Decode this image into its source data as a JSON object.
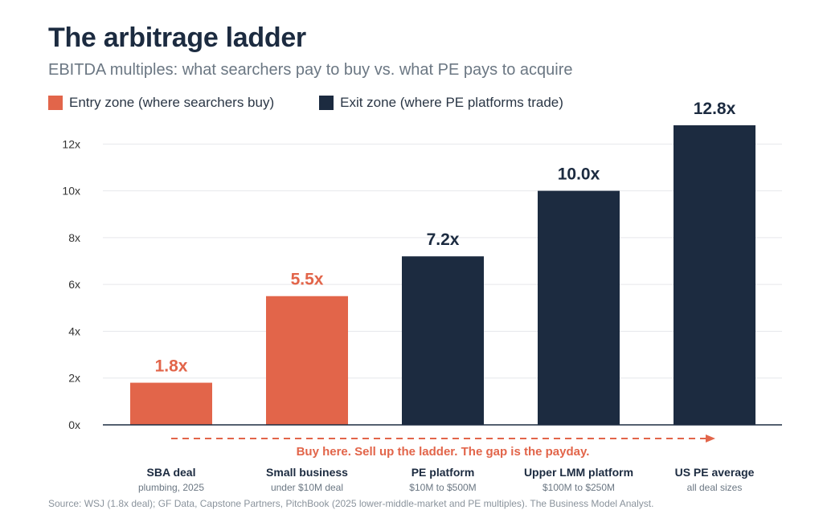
{
  "title": "The arbitrage ladder",
  "subtitle": "EBITDA multiples: what searchers pay to buy vs. what PE pays to acquire",
  "legend": [
    {
      "label": "Entry zone (where searchers buy)",
      "color": "#e2654a"
    },
    {
      "label": "Exit zone (where PE platforms trade)",
      "color": "#1c2b40"
    }
  ],
  "colors": {
    "entry": "#e2654a",
    "exit": "#1c2b40",
    "grid": "#e6e8eb",
    "axis": "#1c2b40",
    "tick": "#333333",
    "sublabel": "#6b7783"
  },
  "chart_data": {
    "type": "bar",
    "categories": [
      "SBA deal",
      "Small business",
      "PE platform",
      "Upper LMM platform",
      "US PE average"
    ],
    "sublabels": [
      "plumbing, 2025",
      "under $10M deal",
      "$10M to $500M",
      "$100M to $250M",
      "all deal sizes"
    ],
    "values": [
      1.8,
      5.5,
      7.2,
      10.0,
      12.8
    ],
    "value_labels": [
      "1.8x",
      "5.5x",
      "7.2x",
      "10.0x",
      "12.8x"
    ],
    "zones": [
      "entry",
      "entry",
      "exit",
      "exit",
      "exit"
    ],
    "ylim": [
      0,
      12.8
    ],
    "yticks": [
      0,
      2,
      4,
      6,
      8,
      10,
      12
    ],
    "ytick_labels": [
      "0x",
      "2x",
      "4x",
      "6x",
      "8x",
      "10x",
      "12x"
    ],
    "grid": true,
    "legend_position": "top-left",
    "annotation": "Buy here. Sell up the ladder. The gap is the payday."
  },
  "source": "Source: WSJ (1.8x deal); GF Data, Capstone Partners, PitchBook (2025 lower-middle-market and PE multiples). The Business Model Analyst."
}
